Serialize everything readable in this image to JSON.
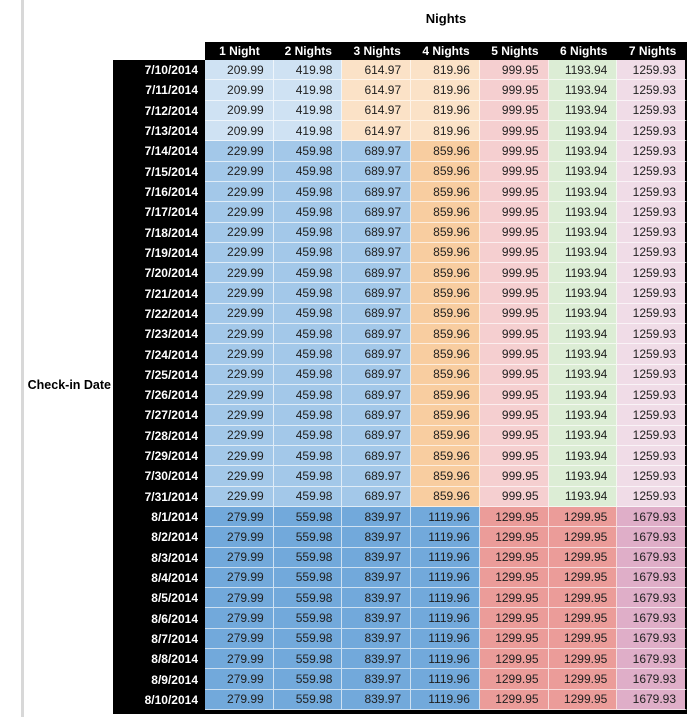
{
  "chart_data": {
    "type": "table",
    "title": "Nights",
    "row_axis_label": "Check-in Date",
    "columns": [
      "1 Night",
      "2 Nights",
      "3 Nights",
      "4 Nights",
      "5 Nights",
      "6 Nights",
      "7 Nights"
    ],
    "header_bg": "#000000",
    "header_text_color": "#FFFFFF",
    "value_text_color": "#1F1F1F",
    "palette": {
      "light_blue": "#CFE2F3",
      "light_tan": "#FBE2C7",
      "light_pink": "#F5CFD0",
      "light_green": "#DCEDD5",
      "light_lavender": "#F0DCE7",
      "medium_blue": "#A3C8E9",
      "medium_orange": "#F8CDA0",
      "dark_blue": "#72A9DB",
      "salmon_red": "#EB9C99",
      "mauve_pink": "#DFAEC8"
    },
    "rows": [
      {
        "date": "7/10/2014",
        "values": [
          "209.99",
          "419.98",
          "614.97",
          "819.96",
          "999.95",
          "1193.94",
          "1259.93"
        ],
        "colors": [
          "light_blue",
          "light_blue",
          "light_tan",
          "light_tan",
          "light_pink",
          "light_green",
          "light_lavender"
        ]
      },
      {
        "date": "7/11/2014",
        "values": [
          "209.99",
          "419.98",
          "614.97",
          "819.96",
          "999.95",
          "1193.94",
          "1259.93"
        ],
        "colors": [
          "light_blue",
          "light_blue",
          "light_tan",
          "light_tan",
          "light_pink",
          "light_green",
          "light_lavender"
        ]
      },
      {
        "date": "7/12/2014",
        "values": [
          "209.99",
          "419.98",
          "614.97",
          "819.96",
          "999.95",
          "1193.94",
          "1259.93"
        ],
        "colors": [
          "light_blue",
          "light_blue",
          "light_tan",
          "light_tan",
          "light_pink",
          "light_green",
          "light_lavender"
        ]
      },
      {
        "date": "7/13/2014",
        "values": [
          "209.99",
          "419.98",
          "614.97",
          "819.96",
          "999.95",
          "1193.94",
          "1259.93"
        ],
        "colors": [
          "light_blue",
          "light_blue",
          "light_tan",
          "light_tan",
          "light_pink",
          "light_green",
          "light_lavender"
        ]
      },
      {
        "date": "7/14/2014",
        "values": [
          "229.99",
          "459.98",
          "689.97",
          "859.96",
          "999.95",
          "1193.94",
          "1259.93"
        ],
        "colors": [
          "medium_blue",
          "medium_blue",
          "medium_blue",
          "medium_orange",
          "light_pink",
          "light_green",
          "light_lavender"
        ]
      },
      {
        "date": "7/15/2014",
        "values": [
          "229.99",
          "459.98",
          "689.97",
          "859.96",
          "999.95",
          "1193.94",
          "1259.93"
        ],
        "colors": [
          "medium_blue",
          "medium_blue",
          "medium_blue",
          "medium_orange",
          "light_pink",
          "light_green",
          "light_lavender"
        ]
      },
      {
        "date": "7/16/2014",
        "values": [
          "229.99",
          "459.98",
          "689.97",
          "859.96",
          "999.95",
          "1193.94",
          "1259.93"
        ],
        "colors": [
          "medium_blue",
          "medium_blue",
          "medium_blue",
          "medium_orange",
          "light_pink",
          "light_green",
          "light_lavender"
        ]
      },
      {
        "date": "7/17/2014",
        "values": [
          "229.99",
          "459.98",
          "689.97",
          "859.96",
          "999.95",
          "1193.94",
          "1259.93"
        ],
        "colors": [
          "medium_blue",
          "medium_blue",
          "medium_blue",
          "medium_orange",
          "light_pink",
          "light_green",
          "light_lavender"
        ]
      },
      {
        "date": "7/18/2014",
        "values": [
          "229.99",
          "459.98",
          "689.97",
          "859.96",
          "999.95",
          "1193.94",
          "1259.93"
        ],
        "colors": [
          "medium_blue",
          "medium_blue",
          "medium_blue",
          "medium_orange",
          "light_pink",
          "light_green",
          "light_lavender"
        ]
      },
      {
        "date": "7/19/2014",
        "values": [
          "229.99",
          "459.98",
          "689.97",
          "859.96",
          "999.95",
          "1193.94",
          "1259.93"
        ],
        "colors": [
          "medium_blue",
          "medium_blue",
          "medium_blue",
          "medium_orange",
          "light_pink",
          "light_green",
          "light_lavender"
        ]
      },
      {
        "date": "7/20/2014",
        "values": [
          "229.99",
          "459.98",
          "689.97",
          "859.96",
          "999.95",
          "1193.94",
          "1259.93"
        ],
        "colors": [
          "medium_blue",
          "medium_blue",
          "medium_blue",
          "medium_orange",
          "light_pink",
          "light_green",
          "light_lavender"
        ]
      },
      {
        "date": "7/21/2014",
        "values": [
          "229.99",
          "459.98",
          "689.97",
          "859.96",
          "999.95",
          "1193.94",
          "1259.93"
        ],
        "colors": [
          "medium_blue",
          "medium_blue",
          "medium_blue",
          "medium_orange",
          "light_pink",
          "light_green",
          "light_lavender"
        ]
      },
      {
        "date": "7/22/2014",
        "values": [
          "229.99",
          "459.98",
          "689.97",
          "859.96",
          "999.95",
          "1193.94",
          "1259.93"
        ],
        "colors": [
          "medium_blue",
          "medium_blue",
          "medium_blue",
          "medium_orange",
          "light_pink",
          "light_green",
          "light_lavender"
        ]
      },
      {
        "date": "7/23/2014",
        "values": [
          "229.99",
          "459.98",
          "689.97",
          "859.96",
          "999.95",
          "1193.94",
          "1259.93"
        ],
        "colors": [
          "medium_blue",
          "medium_blue",
          "medium_blue",
          "medium_orange",
          "light_pink",
          "light_green",
          "light_lavender"
        ]
      },
      {
        "date": "7/24/2014",
        "values": [
          "229.99",
          "459.98",
          "689.97",
          "859.96",
          "999.95",
          "1193.94",
          "1259.93"
        ],
        "colors": [
          "medium_blue",
          "medium_blue",
          "medium_blue",
          "medium_orange",
          "light_pink",
          "light_green",
          "light_lavender"
        ]
      },
      {
        "date": "7/25/2014",
        "values": [
          "229.99",
          "459.98",
          "689.97",
          "859.96",
          "999.95",
          "1193.94",
          "1259.93"
        ],
        "colors": [
          "medium_blue",
          "medium_blue",
          "medium_blue",
          "medium_orange",
          "light_pink",
          "light_green",
          "light_lavender"
        ]
      },
      {
        "date": "7/26/2014",
        "values": [
          "229.99",
          "459.98",
          "689.97",
          "859.96",
          "999.95",
          "1193.94",
          "1259.93"
        ],
        "colors": [
          "medium_blue",
          "medium_blue",
          "medium_blue",
          "medium_orange",
          "light_pink",
          "light_green",
          "light_lavender"
        ]
      },
      {
        "date": "7/27/2014",
        "values": [
          "229.99",
          "459.98",
          "689.97",
          "859.96",
          "999.95",
          "1193.94",
          "1259.93"
        ],
        "colors": [
          "medium_blue",
          "medium_blue",
          "medium_blue",
          "medium_orange",
          "light_pink",
          "light_green",
          "light_lavender"
        ]
      },
      {
        "date": "7/28/2014",
        "values": [
          "229.99",
          "459.98",
          "689.97",
          "859.96",
          "999.95",
          "1193.94",
          "1259.93"
        ],
        "colors": [
          "medium_blue",
          "medium_blue",
          "medium_blue",
          "medium_orange",
          "light_pink",
          "light_green",
          "light_lavender"
        ]
      },
      {
        "date": "7/29/2014",
        "values": [
          "229.99",
          "459.98",
          "689.97",
          "859.96",
          "999.95",
          "1193.94",
          "1259.93"
        ],
        "colors": [
          "medium_blue",
          "medium_blue",
          "medium_blue",
          "medium_orange",
          "light_pink",
          "light_green",
          "light_lavender"
        ]
      },
      {
        "date": "7/30/2014",
        "values": [
          "229.99",
          "459.98",
          "689.97",
          "859.96",
          "999.95",
          "1193.94",
          "1259.93"
        ],
        "colors": [
          "medium_blue",
          "medium_blue",
          "medium_blue",
          "medium_orange",
          "light_pink",
          "light_green",
          "light_lavender"
        ]
      },
      {
        "date": "7/31/2014",
        "values": [
          "229.99",
          "459.98",
          "689.97",
          "859.96",
          "999.95",
          "1193.94",
          "1259.93"
        ],
        "colors": [
          "medium_blue",
          "medium_blue",
          "medium_blue",
          "medium_orange",
          "light_pink",
          "light_green",
          "light_lavender"
        ]
      },
      {
        "date": "8/1/2014",
        "values": [
          "279.99",
          "559.98",
          "839.97",
          "1119.96",
          "1299.95",
          "1299.95",
          "1679.93"
        ],
        "colors": [
          "dark_blue",
          "dark_blue",
          "dark_blue",
          "dark_blue",
          "salmon_red",
          "salmon_red",
          "mauve_pink"
        ]
      },
      {
        "date": "8/2/2014",
        "values": [
          "279.99",
          "559.98",
          "839.97",
          "1119.96",
          "1299.95",
          "1299.95",
          "1679.93"
        ],
        "colors": [
          "dark_blue",
          "dark_blue",
          "dark_blue",
          "dark_blue",
          "salmon_red",
          "salmon_red",
          "mauve_pink"
        ]
      },
      {
        "date": "8/3/2014",
        "values": [
          "279.99",
          "559.98",
          "839.97",
          "1119.96",
          "1299.95",
          "1299.95",
          "1679.93"
        ],
        "colors": [
          "dark_blue",
          "dark_blue",
          "dark_blue",
          "dark_blue",
          "salmon_red",
          "salmon_red",
          "mauve_pink"
        ]
      },
      {
        "date": "8/4/2014",
        "values": [
          "279.99",
          "559.98",
          "839.97",
          "1119.96",
          "1299.95",
          "1299.95",
          "1679.93"
        ],
        "colors": [
          "dark_blue",
          "dark_blue",
          "dark_blue",
          "dark_blue",
          "salmon_red",
          "salmon_red",
          "mauve_pink"
        ]
      },
      {
        "date": "8/5/2014",
        "values": [
          "279.99",
          "559.98",
          "839.97",
          "1119.96",
          "1299.95",
          "1299.95",
          "1679.93"
        ],
        "colors": [
          "dark_blue",
          "dark_blue",
          "dark_blue",
          "dark_blue",
          "salmon_red",
          "salmon_red",
          "mauve_pink"
        ]
      },
      {
        "date": "8/6/2014",
        "values": [
          "279.99",
          "559.98",
          "839.97",
          "1119.96",
          "1299.95",
          "1299.95",
          "1679.93"
        ],
        "colors": [
          "dark_blue",
          "dark_blue",
          "dark_blue",
          "dark_blue",
          "salmon_red",
          "salmon_red",
          "mauve_pink"
        ]
      },
      {
        "date": "8/7/2014",
        "values": [
          "279.99",
          "559.98",
          "839.97",
          "1119.96",
          "1299.95",
          "1299.95",
          "1679.93"
        ],
        "colors": [
          "dark_blue",
          "dark_blue",
          "dark_blue",
          "dark_blue",
          "salmon_red",
          "salmon_red",
          "mauve_pink"
        ]
      },
      {
        "date": "8/8/2014",
        "values": [
          "279.99",
          "559.98",
          "839.97",
          "1119.96",
          "1299.95",
          "1299.95",
          "1679.93"
        ],
        "colors": [
          "dark_blue",
          "dark_blue",
          "dark_blue",
          "dark_blue",
          "salmon_red",
          "salmon_red",
          "mauve_pink"
        ]
      },
      {
        "date": "8/9/2014",
        "values": [
          "279.99",
          "559.98",
          "839.97",
          "1119.96",
          "1299.95",
          "1299.95",
          "1679.93"
        ],
        "colors": [
          "dark_blue",
          "dark_blue",
          "dark_blue",
          "dark_blue",
          "salmon_red",
          "salmon_red",
          "mauve_pink"
        ]
      },
      {
        "date": "8/10/2014",
        "values": [
          "279.99",
          "559.98",
          "839.97",
          "1119.96",
          "1299.95",
          "1299.95",
          "1679.93"
        ],
        "colors": [
          "dark_blue",
          "dark_blue",
          "dark_blue",
          "dark_blue",
          "salmon_red",
          "salmon_red",
          "mauve_pink"
        ]
      }
    ]
  }
}
